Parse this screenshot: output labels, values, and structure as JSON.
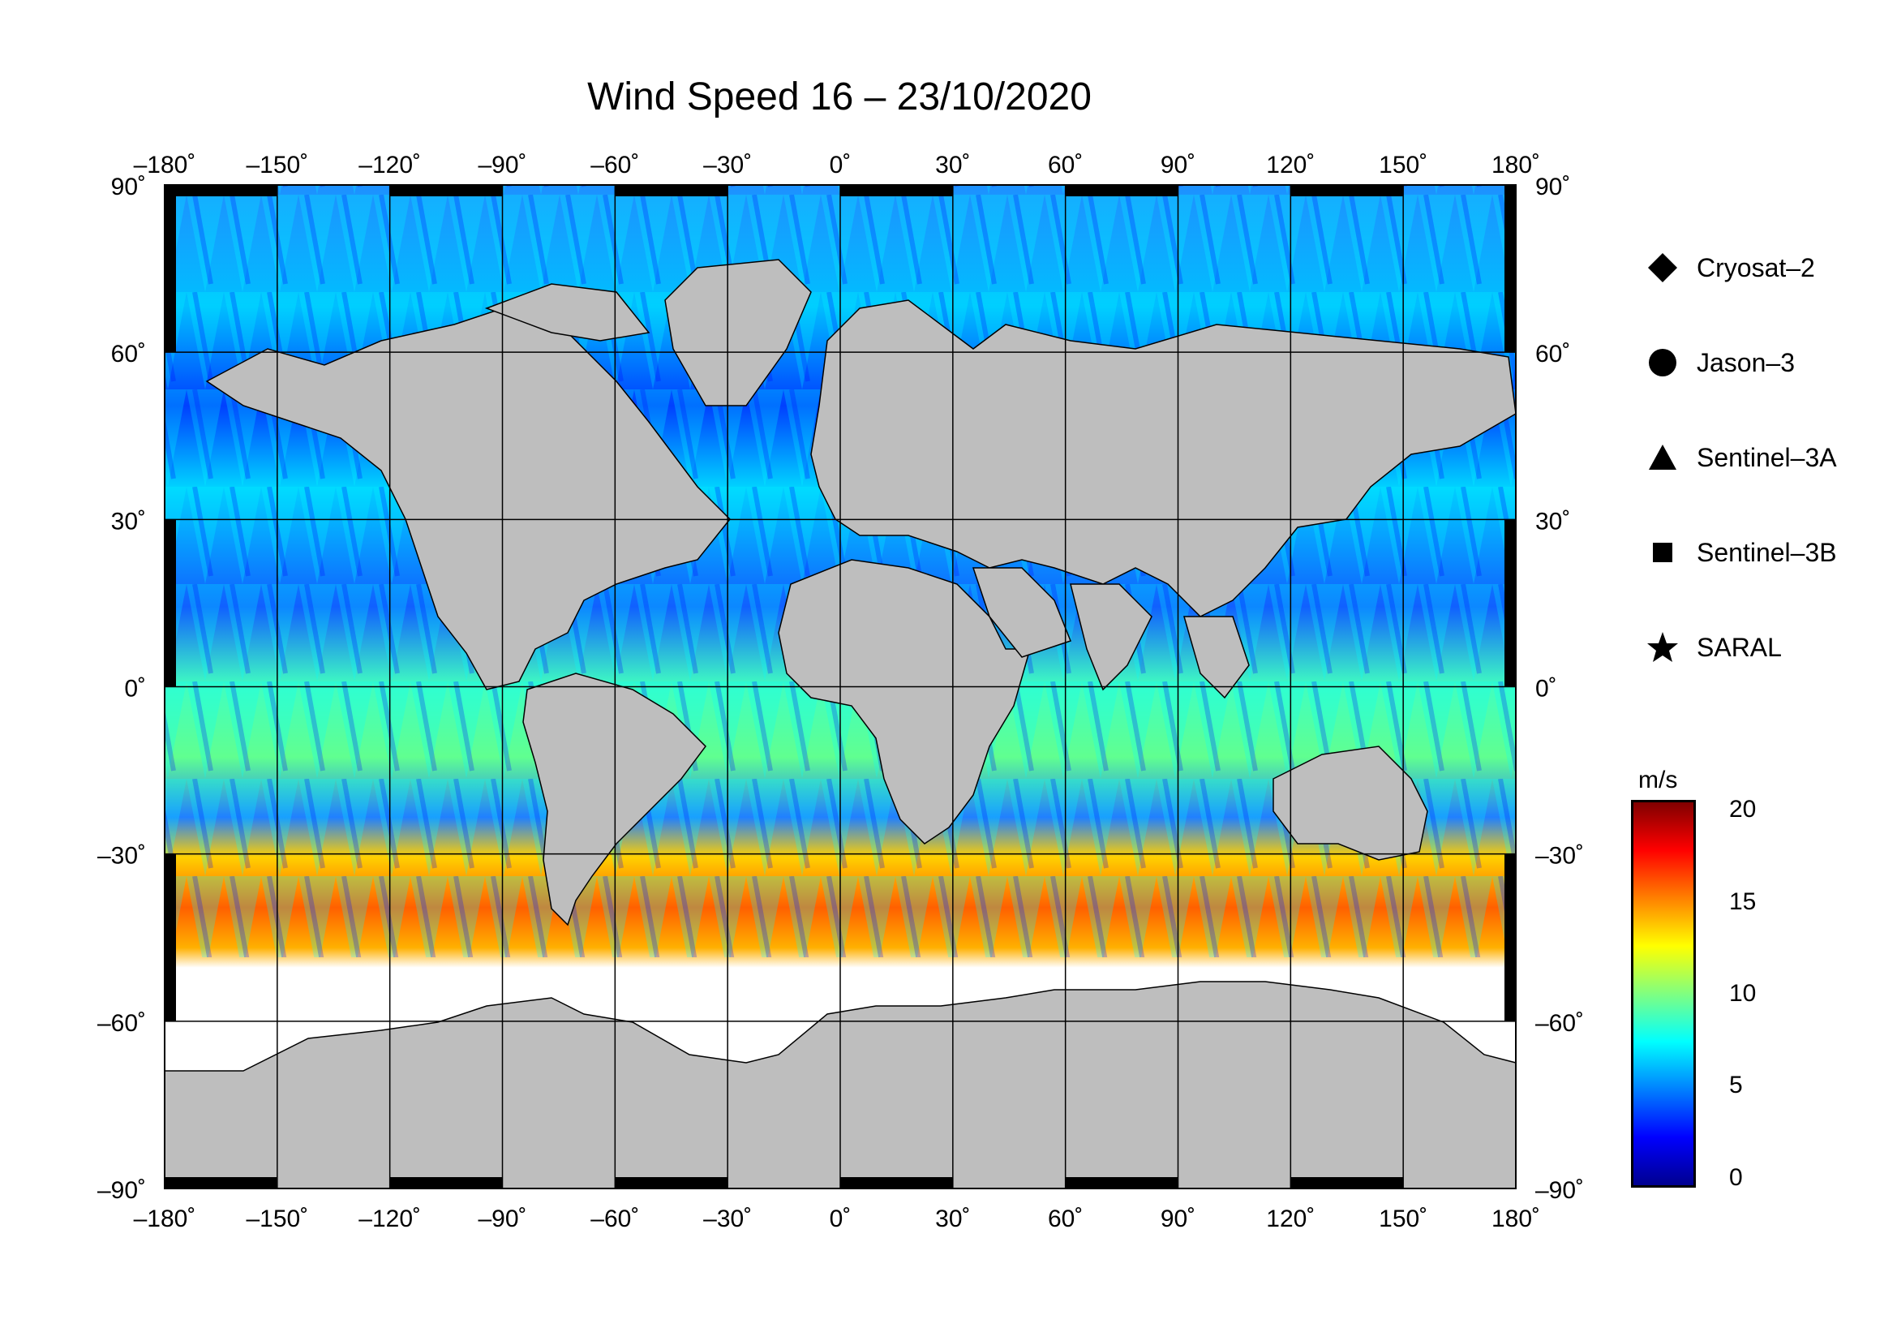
{
  "title": "Wind Speed 16 – 23/10/2020",
  "lon_ticks": [
    "–180˚",
    "–150˚",
    "–120˚",
    "–90˚",
    "–60˚",
    "–30˚",
    "0˚",
    "30˚",
    "60˚",
    "90˚",
    "120˚",
    "150˚",
    "180˚"
  ],
  "lat_ticks": [
    "90˚",
    "60˚",
    "30˚",
    "0˚",
    "–30˚",
    "–60˚",
    "–90˚"
  ],
  "legend": [
    {
      "label": "Cryosat–2",
      "icon": "diamond-icon"
    },
    {
      "label": "Jason–3",
      "icon": "circle-icon"
    },
    {
      "label": "Sentinel–3A",
      "icon": "triangle-icon"
    },
    {
      "label": "Sentinel–3B",
      "icon": "square-icon"
    },
    {
      "label": "SARAL",
      "icon": "star-icon"
    }
  ],
  "colorbar": {
    "unit": "m/s",
    "ticks": [
      "20",
      "15",
      "10",
      "5",
      "0"
    ],
    "range": [
      0,
      21
    ]
  },
  "colors": {
    "land": "#bebebe",
    "ice": "#ffffff",
    "ocean_low": "#0000ff",
    "ocean_mid": "#00ffff",
    "ocean_high": "#ff0000"
  }
}
